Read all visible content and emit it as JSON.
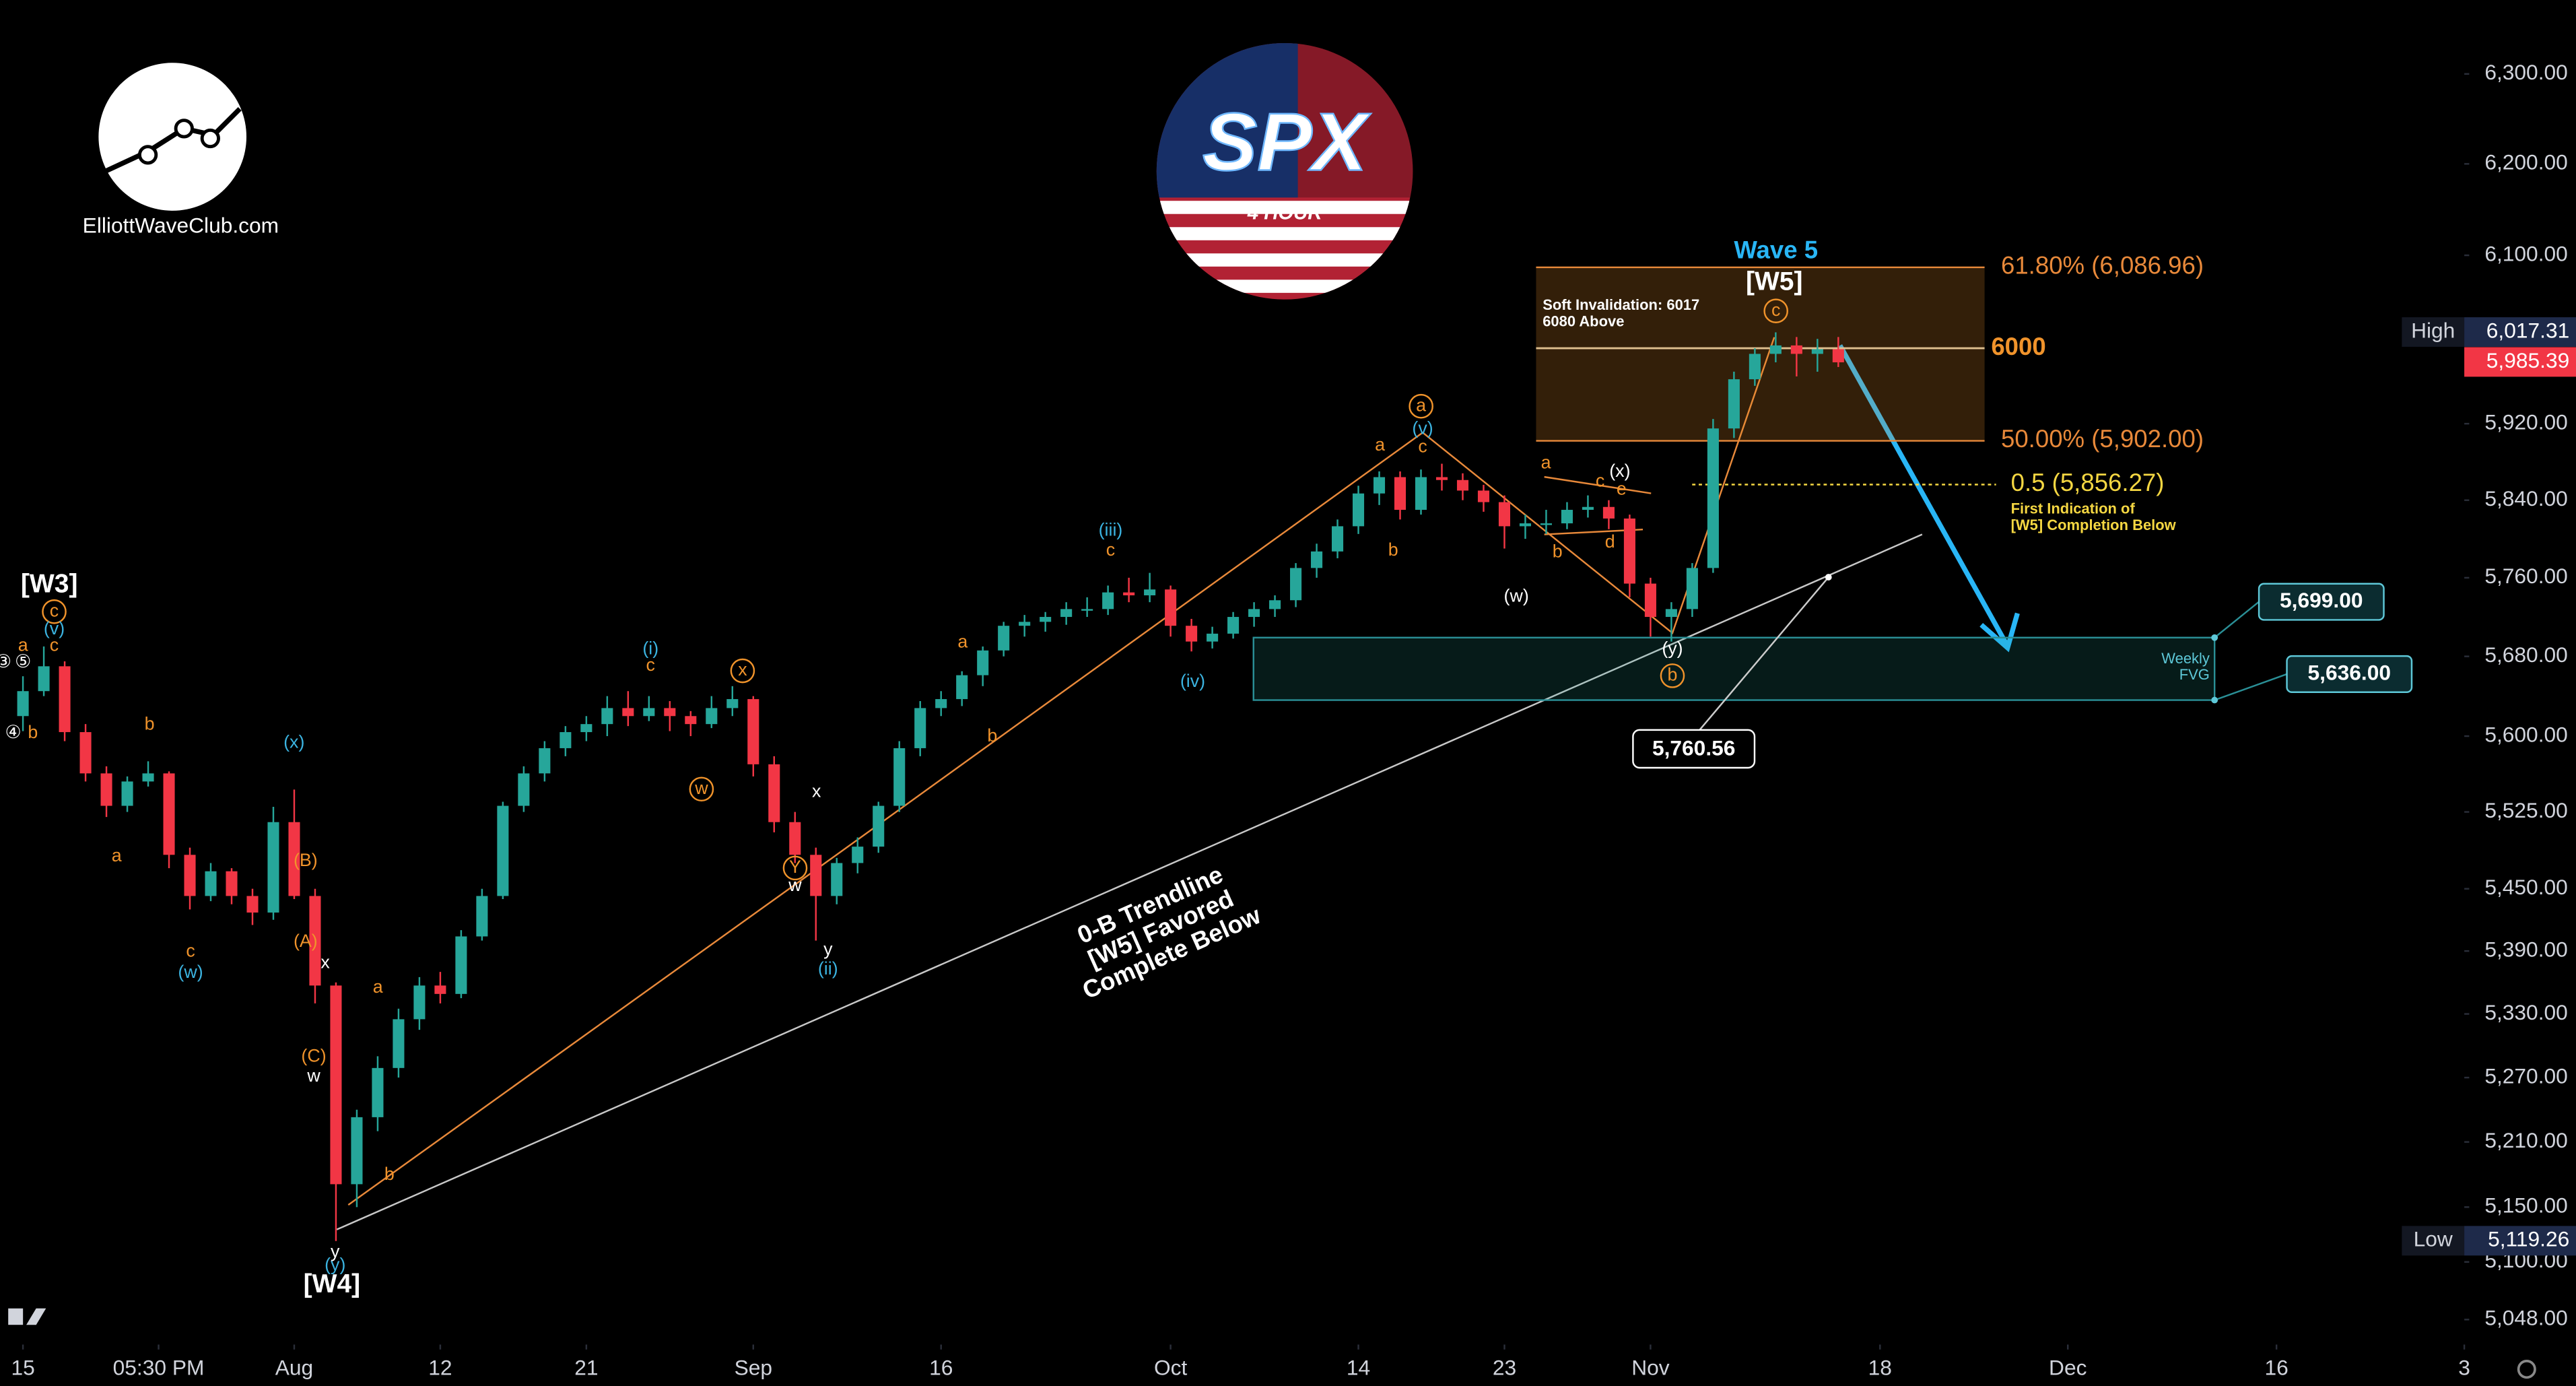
{
  "header": {
    "brand": "ElliottWaveClub.com",
    "symbol": "SPX",
    "timeframe": "4 HOUR"
  },
  "chart_data": {
    "type": "candlestick",
    "log_y": true,
    "up_color": "#26a69a",
    "down_color": "#f23645",
    "x": [
      -13,
      -12,
      -11,
      -10,
      -9,
      -8,
      -7,
      -6,
      -5,
      -4,
      -3,
      -2,
      -1,
      0,
      1,
      2,
      3,
      4,
      5,
      6,
      7,
      8,
      9,
      10,
      11,
      12,
      13,
      14,
      15,
      16,
      17,
      18,
      19,
      20,
      21,
      22,
      23,
      24,
      25,
      26,
      27,
      28,
      29,
      30,
      31,
      32,
      33,
      34,
      35,
      36,
      37,
      38,
      39,
      40,
      41,
      42,
      43,
      44,
      45,
      46,
      47,
      48,
      49,
      50,
      51,
      52,
      53,
      54,
      55,
      56,
      57,
      58,
      59,
      60,
      61,
      62,
      63,
      64,
      65,
      66,
      67,
      68,
      69,
      70,
      71,
      72,
      73,
      74
    ],
    "open": [
      5620,
      5645,
      5670,
      5604,
      5563,
      5531,
      5555,
      5563,
      5483,
      5443,
      5467,
      5443,
      5427,
      5515,
      5443,
      5357,
      5171,
      5233,
      5279,
      5325,
      5357,
      5349,
      5404,
      5443,
      5531,
      5563,
      5588,
      5604,
      5612,
      5628,
      5620,
      5628,
      5620,
      5612,
      5628,
      5637,
      5572,
      5515,
      5483,
      5443,
      5475,
      5491,
      5531,
      5588,
      5628,
      5637,
      5661,
      5686,
      5711,
      5715,
      5720,
      5728,
      5728,
      5745,
      5742,
      5748,
      5711,
      5695,
      5703,
      5720,
      5728,
      5737,
      5770,
      5787,
      5813,
      5847,
      5864,
      5830,
      5864,
      5861,
      5850,
      5838,
      5813,
      5816,
      5816,
      5830,
      5833,
      5821,
      5754,
      5720,
      5728,
      5770,
      5915,
      5967,
      5994,
      6003,
      5994,
      5999
    ],
    "high": [
      5660,
      5690,
      5675,
      5612,
      5570,
      5560,
      5575,
      5565,
      5490,
      5475,
      5470,
      5450,
      5530,
      5547,
      5450,
      5360,
      5240,
      5290,
      5335,
      5365,
      5370,
      5410,
      5450,
      5535,
      5570,
      5595,
      5610,
      5620,
      5640,
      5645,
      5640,
      5635,
      5625,
      5640,
      5650,
      5640,
      5580,
      5525,
      5490,
      5480,
      5500,
      5535,
      5595,
      5635,
      5645,
      5665,
      5690,
      5715,
      5722,
      5725,
      5735,
      5740,
      5752,
      5760,
      5765,
      5752,
      5718,
      5710,
      5725,
      5735,
      5742,
      5775,
      5795,
      5820,
      5855,
      5870,
      5870,
      5872,
      5878,
      5868,
      5856,
      5845,
      5825,
      5830,
      5838,
      5845,
      5840,
      5825,
      5760,
      5735,
      5775,
      5925,
      5975,
      6000,
      6017,
      6012,
      6010,
      6012
    ],
    "low": [
      5605,
      5640,
      5595,
      5555,
      5520,
      5525,
      5550,
      5470,
      5430,
      5438,
      5435,
      5415,
      5420,
      5440,
      5340,
      5119,
      5150,
      5220,
      5270,
      5315,
      5340,
      5345,
      5400,
      5440,
      5525,
      5555,
      5580,
      5595,
      5600,
      5610,
      5615,
      5605,
      5600,
      5608,
      5620,
      5560,
      5505,
      5475,
      5400,
      5435,
      5465,
      5485,
      5525,
      5580,
      5620,
      5630,
      5650,
      5680,
      5700,
      5705,
      5712,
      5720,
      5722,
      5735,
      5735,
      5700,
      5685,
      5688,
      5698,
      5710,
      5720,
      5730,
      5760,
      5780,
      5805,
      5835,
      5820,
      5825,
      5850,
      5840,
      5828,
      5790,
      5800,
      5805,
      5810,
      5822,
      5810,
      5740,
      5700,
      5695,
      5720,
      5765,
      5905,
      5960,
      5985,
      5970,
      5975,
      5980
    ],
    "close": [
      5645,
      5670,
      5604,
      5563,
      5531,
      5555,
      5563,
      5483,
      5443,
      5467,
      5443,
      5427,
      5515,
      5443,
      5357,
      5171,
      5233,
      5279,
      5325,
      5357,
      5349,
      5404,
      5443,
      5531,
      5563,
      5588,
      5604,
      5612,
      5628,
      5620,
      5628,
      5620,
      5612,
      5628,
      5637,
      5572,
      5515,
      5483,
      5443,
      5475,
      5491,
      5531,
      5588,
      5628,
      5637,
      5661,
      5686,
      5711,
      5715,
      5720,
      5728,
      5728,
      5745,
      5742,
      5748,
      5711,
      5695,
      5703,
      5720,
      5728,
      5737,
      5770,
      5787,
      5813,
      5847,
      5864,
      5830,
      5864,
      5861,
      5850,
      5838,
      5813,
      5816,
      5816,
      5830,
      5833,
      5821,
      5754,
      5720,
      5728,
      5770,
      5915,
      5967,
      5994,
      6003,
      5994,
      5999,
      5985
    ],
    "xlim": [
      -14.1,
      104
    ],
    "xticks": [
      {
        "value": -13,
        "label": "15"
      },
      {
        "value": -6.5,
        "label": "05:30 PM"
      },
      {
        "value": 0,
        "label": "Aug"
      },
      {
        "value": 7,
        "label": "12"
      },
      {
        "value": 14,
        "label": "21"
      },
      {
        "value": 22,
        "label": "Sep"
      },
      {
        "value": 31,
        "label": "16"
      },
      {
        "value": 42,
        "label": "Oct"
      },
      {
        "value": 51,
        "label": "14"
      },
      {
        "value": 58,
        "label": "23"
      },
      {
        "value": 65,
        "label": "Nov"
      },
      {
        "value": 76,
        "label": "18"
      },
      {
        "value": 85,
        "label": "Dec"
      },
      {
        "value": 95,
        "label": "16"
      },
      {
        "value": 104,
        "label": "3"
      }
    ],
    "ylim": [
      5030,
      6383
    ],
    "yticks": [
      {
        "value": 6300,
        "label": "6,300.00"
      },
      {
        "value": 6200,
        "label": "6,200.00"
      },
      {
        "value": 6100,
        "label": "6,100.00"
      },
      {
        "value": 5920,
        "label": "5,920.00"
      },
      {
        "value": 5840,
        "label": "5,840.00"
      },
      {
        "value": 5760,
        "label": "5,760.00"
      },
      {
        "value": 5680,
        "label": "5,680.00"
      },
      {
        "value": 5600,
        "label": "5,600.00"
      },
      {
        "value": 5525,
        "label": "5,525.00"
      },
      {
        "value": 5450,
        "label": "5,450.00"
      },
      {
        "value": 5390,
        "label": "5,390.00"
      },
      {
        "value": 5330,
        "label": "5,330.00"
      },
      {
        "value": 5270,
        "label": "5,270.00"
      },
      {
        "value": 5210,
        "label": "5,210.00"
      },
      {
        "value": 5150,
        "label": "5,150.00"
      },
      {
        "value": 5100,
        "label": "5,100.00"
      },
      {
        "value": 5048,
        "label": "5,048.00"
      }
    ],
    "price_tags": [
      {
        "name": "High",
        "value": 6017.31,
        "label": "6,017.31"
      },
      {
        "value": 5985.39,
        "label": "5,985.39"
      },
      {
        "name": "Low",
        "value": 5119.26,
        "label": "5,119.26"
      }
    ],
    "fib_levels": [
      {
        "value": 6086.96,
        "label": "61.80% (6,086.96)"
      },
      {
        "value": 5902,
        "label": "50.00% (5,902.00)"
      },
      {
        "value": 5856.27,
        "label": "0.5 (5,856.27)"
      }
    ],
    "key_level": 6000,
    "fvg": {
      "top": {
        "value": 5699,
        "label": "5,699.00"
      },
      "bottom": {
        "value": 5636,
        "label": "5,636.00"
      },
      "text": [
        "Weekly",
        "FVG"
      ]
    },
    "trendline_value": {
      "value": 5760.56,
      "label": "5,760.56"
    },
    "notes": {
      "wave5": "Wave 5",
      "soft_invalidation": [
        "Soft Invalidation: 6017",
        "6080 Above"
      ],
      "first_indication": [
        "First Indication of",
        "[W5] Completion Below"
      ],
      "trendline": [
        "0-B Trendline",
        "[W5] Favored",
        "Complete Below"
      ]
    },
    "wave_labels": [
      "[W3]",
      "c",
      "(v)",
      "a",
      "c",
      "③",
      "⑤",
      "④",
      "b",
      "b",
      "a",
      "c",
      "(w)",
      "(x)",
      "(B)",
      "(A)",
      "x",
      "(C)",
      "w",
      "a",
      "b",
      "y",
      "(y)",
      "[W4]",
      "(i)",
      "c",
      "x",
      "w",
      "x",
      "Y",
      "w",
      "y",
      "(ii)",
      "a",
      "b",
      "(iii)",
      "c",
      "(iv)",
      "a",
      "b",
      "a",
      "(v)",
      "c",
      "(w)",
      "a",
      "b",
      "c",
      "d",
      "e",
      "(x)",
      "(y)",
      "b",
      "c",
      "[W5]"
    ]
  }
}
